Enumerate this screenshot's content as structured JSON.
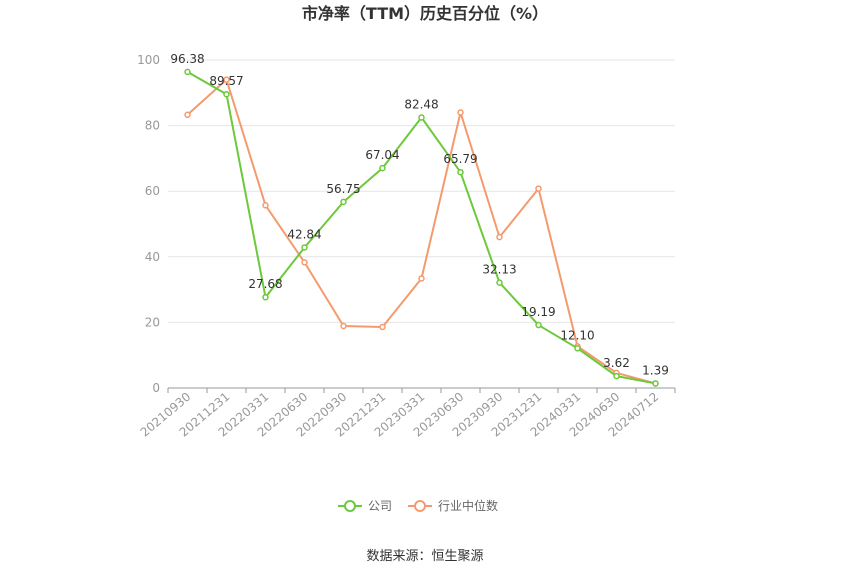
{
  "chart_data": {
    "type": "line",
    "title": "市净率（TTM）历史百分位（%）",
    "categories": [
      "20210930",
      "20211231",
      "20220331",
      "20220630",
      "20220930",
      "20221231",
      "20230331",
      "20230630",
      "20230930",
      "20231231",
      "20240331",
      "20240630",
      "20240712"
    ],
    "series": [
      {
        "name": "公司",
        "color": "#6cc93a",
        "values": [
          96.38,
          89.57,
          27.68,
          42.84,
          56.75,
          67.04,
          82.48,
          65.79,
          32.13,
          19.19,
          12.1,
          3.62,
          1.39
        ],
        "labels": [
          "96.38",
          "89.57",
          "27.68",
          "42.84",
          "56.75",
          "67.04",
          "82.48",
          "65.79",
          "32.13",
          "19.19",
          "12.10",
          "3.62",
          "1.39"
        ]
      },
      {
        "name": "行业中位数",
        "color": "#f59a6e",
        "values": [
          83.3,
          94.0,
          55.7,
          38.3,
          18.9,
          18.6,
          33.4,
          84.0,
          46.0,
          60.8,
          12.7,
          4.6,
          1.39
        ]
      }
    ],
    "ylim": [
      0,
      100
    ],
    "yticks": [
      0,
      20,
      40,
      60,
      80,
      100
    ],
    "grid": true,
    "legend_position": "bottom-center",
    "source": "数据来源：恒生聚源"
  }
}
